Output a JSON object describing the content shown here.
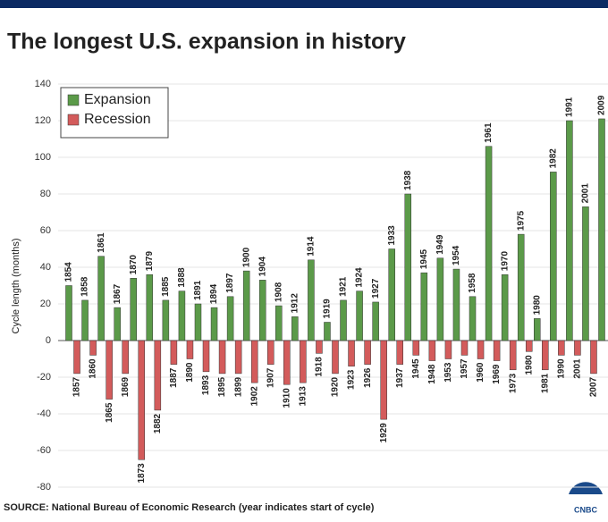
{
  "chart_data": {
    "type": "bar",
    "title": "The longest U.S. expansion in history",
    "y_label": "Cycle length (months)",
    "source": "SOURCE: National Bureau of Economic Research (year indicates start of cycle)",
    "logo": "CNBC",
    "ylim": [
      -80,
      140
    ],
    "yticks": [
      -80,
      -60,
      -40,
      -20,
      0,
      20,
      40,
      60,
      80,
      100,
      120,
      140
    ],
    "grid": true,
    "legend": "top-left",
    "series": [
      {
        "name": "Expansion",
        "color": "#5b9a49",
        "labels": [
          "1854",
          "1858",
          "1861",
          "1867",
          "1870",
          "1879",
          "1885",
          "1888",
          "1891",
          "1894",
          "1897",
          "1900",
          "1904",
          "1908",
          "1912",
          "1914",
          "1919",
          "1921",
          "1924",
          "1927",
          "1933",
          "1938",
          "1945",
          "1949",
          "1954",
          "1958",
          "1961",
          "1970",
          "1975",
          "1980",
          "1982",
          "1991",
          "2001",
          "2009"
        ],
        "values": [
          30,
          22,
          46,
          18,
          34,
          36,
          22,
          27,
          20,
          18,
          24,
          38,
          33,
          19,
          13,
          44,
          10,
          22,
          27,
          21,
          50,
          80,
          37,
          45,
          39,
          24,
          106,
          36,
          58,
          12,
          92,
          120,
          73,
          121
        ]
      },
      {
        "name": "Recession",
        "color": "#d35b5b",
        "labels": [
          "1857",
          "1860",
          "1865",
          "1869",
          "1873",
          "1882",
          "1887",
          "1890",
          "1893",
          "1895",
          "1899",
          "1902",
          "1907",
          "1910",
          "1913",
          "1918",
          "1920",
          "1923",
          "1926",
          "1929",
          "1937",
          "1945",
          "1948",
          "1953",
          "1957",
          "1960",
          "1969",
          "1973",
          "1980",
          "1981",
          "1990",
          "2001",
          "2007"
        ],
        "values": [
          -18,
          -8,
          -32,
          -18,
          -65,
          -38,
          -13,
          -10,
          -17,
          -18,
          -18,
          -23,
          -13,
          -24,
          -23,
          -7,
          -18,
          -14,
          -13,
          -43,
          -13,
          -8,
          -11,
          -10,
          -8,
          -10,
          -11,
          -16,
          -6,
          -16,
          -8,
          -8,
          -18
        ]
      }
    ]
  }
}
